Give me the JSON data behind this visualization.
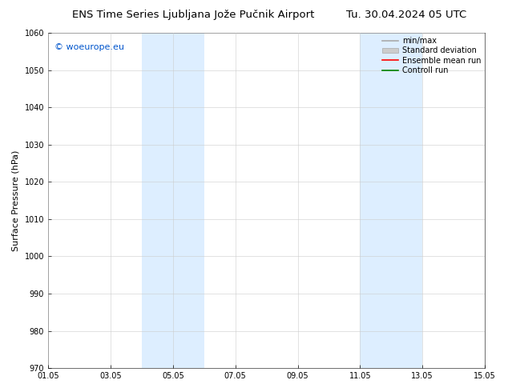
{
  "title_left": "ENS Time Series Ljubljana Jože Pučnik Airport",
  "title_right": "Tu. 30.04.2024 05 UTC",
  "ylabel": "Surface Pressure (hPa)",
  "ylim": [
    970,
    1060
  ],
  "yticks": [
    970,
    980,
    990,
    1000,
    1010,
    1020,
    1030,
    1040,
    1050,
    1060
  ],
  "xlim_start": 0,
  "xlim_end": 14,
  "xtick_positions": [
    0,
    2,
    4,
    6,
    8,
    10,
    12,
    14
  ],
  "xtick_labels": [
    "01.05",
    "03.05",
    "05.05",
    "07.05",
    "09.05",
    "11.05",
    "13.05",
    "15.05"
  ],
  "shaded_bands": [
    {
      "x_start": 3.0,
      "x_end": 5.0,
      "color": "#ddeeff"
    },
    {
      "x_start": 10.0,
      "x_end": 12.0,
      "color": "#ddeeff"
    }
  ],
  "watermark_text": "© woeurope.eu",
  "watermark_color": "#0055cc",
  "legend_items": [
    {
      "label": "min/max",
      "type": "line",
      "color": "#aaaaaa",
      "lw": 1.2
    },
    {
      "label": "Standard deviation",
      "type": "patch",
      "color": "#cccccc",
      "edgecolor": "#aaaaaa"
    },
    {
      "label": "Ensemble mean run",
      "type": "line",
      "color": "#ff0000",
      "lw": 1.2
    },
    {
      "label": "Controll run",
      "type": "line",
      "color": "#008000",
      "lw": 1.2
    }
  ],
  "bg_color": "#ffffff",
  "grid_color": "#cccccc",
  "title_fontsize": 9.5,
  "label_fontsize": 8,
  "tick_fontsize": 7,
  "watermark_fontsize": 8,
  "legend_fontsize": 7
}
